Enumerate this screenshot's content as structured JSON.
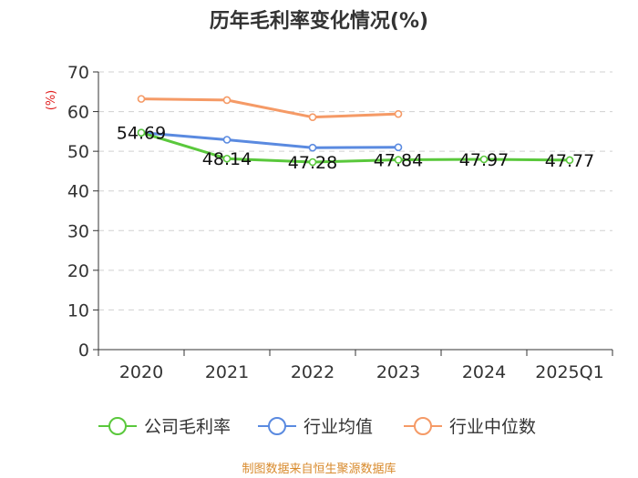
{
  "chart_data": {
    "type": "line",
    "title": "历年毛利率变化情况(%)",
    "ylabel": "(%)",
    "ylim": [
      0,
      70
    ],
    "yticks": [
      0,
      10,
      20,
      30,
      40,
      50,
      60,
      70
    ],
    "categories": [
      "2020",
      "2021",
      "2022",
      "2023",
      "2024",
      "2025Q1"
    ],
    "grid": true,
    "legend_position": "bottom",
    "series": [
      {
        "name": "公司毛利率",
        "color": "#5ac83c",
        "values": [
          54.69,
          48.14,
          47.28,
          47.84,
          47.97,
          47.77
        ],
        "labels": [
          "54.69",
          "48.14",
          "47.28",
          "47.84",
          "47.97",
          "47.77"
        ]
      },
      {
        "name": "行业均值",
        "color": "#5a8ae0",
        "values": [
          54.7,
          52.9,
          50.9,
          51.0,
          null,
          null
        ]
      },
      {
        "name": "行业中位数",
        "color": "#f59a66",
        "values": [
          63.2,
          62.9,
          58.6,
          59.4,
          null,
          null
        ]
      }
    ]
  },
  "source": "制图数据来自恒生聚源数据库"
}
